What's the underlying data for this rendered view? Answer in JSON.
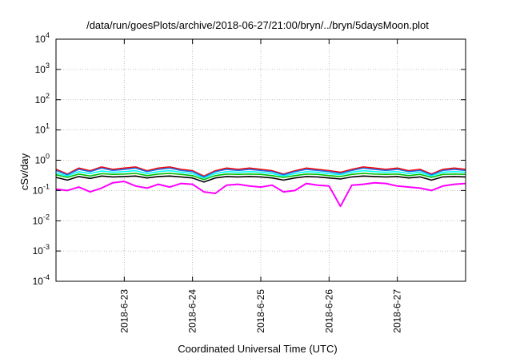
{
  "chart_data": {
    "type": "line",
    "title": "/data/run/goesPlots/archive/2018-06-27/21:00/bryn/../bryn/5daysMoon.plot",
    "xlabel": "Coordinated Universal Time (UTC)",
    "ylabel": "cSv/day",
    "yscale": "log",
    "ylim": [
      0.0001,
      10000
    ],
    "xlim": [
      "2018-06-22T00:00",
      "2018-06-28T00:00"
    ],
    "grid": true,
    "y_ticks": [
      {
        "value": 0.0001,
        "base": "10",
        "exp": "-4"
      },
      {
        "value": 0.001,
        "base": "10",
        "exp": "-3"
      },
      {
        "value": 0.01,
        "base": "10",
        "exp": "-2"
      },
      {
        "value": 0.1,
        "base": "10",
        "exp": "-1"
      },
      {
        "value": 1,
        "base": "10",
        "exp": "0"
      },
      {
        "value": 10,
        "base": "10",
        "exp": "1"
      },
      {
        "value": 100,
        "base": "10",
        "exp": "2"
      },
      {
        "value": 1000,
        "base": "10",
        "exp": "3"
      },
      {
        "value": 10000,
        "base": "10",
        "exp": "4"
      }
    ],
    "x_ticks": [
      {
        "value": "2018-06-23T00:00",
        "label": "2018-6-23"
      },
      {
        "value": "2018-06-24T00:00",
        "label": "2018-6-24"
      },
      {
        "value": "2018-06-25T00:00",
        "label": "2018-6-25"
      },
      {
        "value": "2018-06-26T00:00",
        "label": "2018-6-26"
      },
      {
        "value": "2018-06-27T00:00",
        "label": "2018-6-27"
      }
    ],
    "series": [
      {
        "color": "#ff00ff",
        "x": [
          "2018-06-22T00:00",
          "2018-06-22T04:00",
          "2018-06-22T08:00",
          "2018-06-22T12:00",
          "2018-06-22T16:00",
          "2018-06-22T20:00",
          "2018-06-23T00:00",
          "2018-06-23T04:00",
          "2018-06-23T08:00",
          "2018-06-23T12:00",
          "2018-06-23T16:00",
          "2018-06-23T20:00",
          "2018-06-24T00:00",
          "2018-06-24T04:00",
          "2018-06-24T08:00",
          "2018-06-24T12:00",
          "2018-06-24T16:00",
          "2018-06-24T20:00",
          "2018-06-25T00:00",
          "2018-06-25T04:00",
          "2018-06-25T08:00",
          "2018-06-25T12:00",
          "2018-06-25T16:00",
          "2018-06-25T20:00",
          "2018-06-26T00:00",
          "2018-06-26T04:00",
          "2018-06-26T08:00",
          "2018-06-26T12:00",
          "2018-06-26T16:00",
          "2018-06-26T20:00",
          "2018-06-27T00:00",
          "2018-06-27T04:00",
          "2018-06-27T08:00",
          "2018-06-27T12:00",
          "2018-06-27T16:00",
          "2018-06-27T20:00",
          "2018-06-28T00:00"
        ],
        "y": [
          0.11,
          0.1,
          0.13,
          0.09,
          0.12,
          0.18,
          0.2,
          0.14,
          0.12,
          0.16,
          0.13,
          0.17,
          0.16,
          0.09,
          0.08,
          0.15,
          0.16,
          0.14,
          0.13,
          0.15,
          0.09,
          0.1,
          0.17,
          0.15,
          0.14,
          0.03,
          0.15,
          0.16,
          0.18,
          0.17,
          0.14,
          0.13,
          0.12,
          0.1,
          0.14,
          0.16,
          0.17
        ]
      },
      {
        "color": "#ff0000",
        "x": [
          "2018-06-22T00:00",
          "2018-06-22T04:00",
          "2018-06-22T08:00",
          "2018-06-22T12:00",
          "2018-06-22T16:00",
          "2018-06-22T20:00",
          "2018-06-23T00:00",
          "2018-06-23T04:00",
          "2018-06-23T08:00",
          "2018-06-23T12:00",
          "2018-06-23T16:00",
          "2018-06-23T20:00",
          "2018-06-24T00:00",
          "2018-06-24T04:00",
          "2018-06-24T08:00",
          "2018-06-24T12:00",
          "2018-06-24T16:00",
          "2018-06-24T20:00",
          "2018-06-25T00:00",
          "2018-06-25T04:00",
          "2018-06-25T08:00",
          "2018-06-25T12:00",
          "2018-06-25T16:00",
          "2018-06-25T20:00",
          "2018-06-26T00:00",
          "2018-06-26T04:00",
          "2018-06-26T08:00",
          "2018-06-26T12:00",
          "2018-06-26T16:00",
          "2018-06-26T20:00",
          "2018-06-27T00:00",
          "2018-06-27T04:00",
          "2018-06-27T08:00",
          "2018-06-27T12:00",
          "2018-06-27T16:00",
          "2018-06-27T20:00",
          "2018-06-28T00:00"
        ],
        "y": [
          0.5,
          0.35,
          0.55,
          0.45,
          0.6,
          0.5,
          0.55,
          0.6,
          0.45,
          0.55,
          0.6,
          0.5,
          0.45,
          0.3,
          0.45,
          0.55,
          0.5,
          0.55,
          0.5,
          0.45,
          0.35,
          0.45,
          0.55,
          0.5,
          0.45,
          0.4,
          0.5,
          0.6,
          0.55,
          0.5,
          0.55,
          0.45,
          0.5,
          0.35,
          0.5,
          0.55,
          0.5
        ]
      },
      {
        "color": "#00ffff",
        "x": [
          "2018-06-22T00:00",
          "2018-06-22T04:00",
          "2018-06-22T08:00",
          "2018-06-22T12:00",
          "2018-06-22T16:00",
          "2018-06-22T20:00",
          "2018-06-23T00:00",
          "2018-06-23T04:00",
          "2018-06-23T08:00",
          "2018-06-23T12:00",
          "2018-06-23T16:00",
          "2018-06-23T20:00",
          "2018-06-24T00:00",
          "2018-06-24T04:00",
          "2018-06-24T08:00",
          "2018-06-24T12:00",
          "2018-06-24T16:00",
          "2018-06-24T20:00",
          "2018-06-25T00:00",
          "2018-06-25T04:00",
          "2018-06-25T08:00",
          "2018-06-25T12:00",
          "2018-06-25T16:00",
          "2018-06-25T20:00",
          "2018-06-26T00:00",
          "2018-06-26T04:00",
          "2018-06-26T08:00",
          "2018-06-26T12:00",
          "2018-06-26T16:00",
          "2018-06-26T20:00",
          "2018-06-27T00:00",
          "2018-06-27T04:00",
          "2018-06-27T08:00",
          "2018-06-27T12:00",
          "2018-06-27T16:00",
          "2018-06-27T20:00",
          "2018-06-28T00:00"
        ],
        "y": [
          0.38,
          0.3,
          0.42,
          0.36,
          0.44,
          0.4,
          0.42,
          0.45,
          0.36,
          0.42,
          0.45,
          0.4,
          0.36,
          0.26,
          0.36,
          0.42,
          0.4,
          0.42,
          0.4,
          0.36,
          0.3,
          0.36,
          0.42,
          0.4,
          0.36,
          0.33,
          0.4,
          0.45,
          0.42,
          0.4,
          0.42,
          0.36,
          0.4,
          0.3,
          0.4,
          0.42,
          0.4
        ]
      },
      {
        "color": "#00c000",
        "x": [
          "2018-06-22T00:00",
          "2018-06-22T04:00",
          "2018-06-22T08:00",
          "2018-06-22T12:00",
          "2018-06-22T16:00",
          "2018-06-22T20:00",
          "2018-06-23T00:00",
          "2018-06-23T04:00",
          "2018-06-23T08:00",
          "2018-06-23T12:00",
          "2018-06-23T16:00",
          "2018-06-23T20:00",
          "2018-06-24T00:00",
          "2018-06-24T04:00",
          "2018-06-24T08:00",
          "2018-06-24T12:00",
          "2018-06-24T16:00",
          "2018-06-24T20:00",
          "2018-06-25T00:00",
          "2018-06-25T04:00",
          "2018-06-25T08:00",
          "2018-06-25T12:00",
          "2018-06-25T16:00",
          "2018-06-25T20:00",
          "2018-06-26T00:00",
          "2018-06-26T04:00",
          "2018-06-26T08:00",
          "2018-06-26T12:00",
          "2018-06-26T16:00",
          "2018-06-26T20:00",
          "2018-06-27T00:00",
          "2018-06-27T04:00",
          "2018-06-27T08:00",
          "2018-06-27T12:00",
          "2018-06-27T16:00",
          "2018-06-27T20:00",
          "2018-06-28T00:00"
        ],
        "y": [
          0.33,
          0.27,
          0.35,
          0.3,
          0.36,
          0.34,
          0.35,
          0.37,
          0.31,
          0.35,
          0.37,
          0.34,
          0.31,
          0.23,
          0.31,
          0.35,
          0.34,
          0.35,
          0.34,
          0.31,
          0.27,
          0.31,
          0.35,
          0.34,
          0.31,
          0.29,
          0.34,
          0.37,
          0.35,
          0.34,
          0.35,
          0.31,
          0.34,
          0.27,
          0.34,
          0.35,
          0.34
        ]
      },
      {
        "color": "#000000",
        "x": [
          "2018-06-22T00:00",
          "2018-06-22T04:00",
          "2018-06-22T08:00",
          "2018-06-22T12:00",
          "2018-06-22T16:00",
          "2018-06-22T20:00",
          "2018-06-23T00:00",
          "2018-06-23T04:00",
          "2018-06-23T08:00",
          "2018-06-23T12:00",
          "2018-06-23T16:00",
          "2018-06-23T20:00",
          "2018-06-24T00:00",
          "2018-06-24T04:00",
          "2018-06-24T08:00",
          "2018-06-24T12:00",
          "2018-06-24T16:00",
          "2018-06-24T20:00",
          "2018-06-25T00:00",
          "2018-06-25T04:00",
          "2018-06-25T08:00",
          "2018-06-25T12:00",
          "2018-06-25T16:00",
          "2018-06-25T20:00",
          "2018-06-26T00:00",
          "2018-06-26T04:00",
          "2018-06-26T08:00",
          "2018-06-26T12:00",
          "2018-06-26T16:00",
          "2018-06-26T20:00",
          "2018-06-27T00:00",
          "2018-06-27T04:00",
          "2018-06-27T08:00",
          "2018-06-27T12:00",
          "2018-06-27T16:00",
          "2018-06-27T20:00",
          "2018-06-28T00:00"
        ],
        "y": [
          0.27,
          0.22,
          0.29,
          0.25,
          0.3,
          0.28,
          0.29,
          0.3,
          0.26,
          0.29,
          0.3,
          0.28,
          0.26,
          0.19,
          0.26,
          0.29,
          0.28,
          0.29,
          0.28,
          0.26,
          0.22,
          0.26,
          0.29,
          0.28,
          0.26,
          0.24,
          0.28,
          0.3,
          0.29,
          0.28,
          0.29,
          0.26,
          0.28,
          0.22,
          0.28,
          0.29,
          0.28
        ]
      },
      {
        "color": "#1e6fe0",
        "x": [
          "2018-06-22T00:00",
          "2018-06-22T04:00",
          "2018-06-22T08:00",
          "2018-06-22T12:00",
          "2018-06-22T16:00",
          "2018-06-22T20:00",
          "2018-06-23T00:00",
          "2018-06-23T04:00",
          "2018-06-23T08:00",
          "2018-06-23T12:00",
          "2018-06-23T16:00",
          "2018-06-23T20:00",
          "2018-06-24T00:00",
          "2018-06-24T04:00",
          "2018-06-24T08:00",
          "2018-06-24T12:00",
          "2018-06-24T16:00",
          "2018-06-24T20:00",
          "2018-06-25T00:00",
          "2018-06-25T04:00",
          "2018-06-25T08:00",
          "2018-06-25T12:00",
          "2018-06-25T16:00",
          "2018-06-25T20:00",
          "2018-06-26T00:00",
          "2018-06-26T04:00",
          "2018-06-26T08:00",
          "2018-06-26T12:00",
          "2018-06-26T16:00",
          "2018-06-26T20:00",
          "2018-06-27T00:00",
          "2018-06-27T04:00",
          "2018-06-27T08:00",
          "2018-06-27T12:00",
          "2018-06-27T16:00",
          "2018-06-27T20:00",
          "2018-06-28T00:00"
        ],
        "y": [
          0.46,
          0.33,
          0.5,
          0.42,
          0.55,
          0.46,
          0.5,
          0.55,
          0.42,
          0.5,
          0.55,
          0.46,
          0.42,
          0.28,
          0.42,
          0.5,
          0.46,
          0.5,
          0.46,
          0.42,
          0.33,
          0.42,
          0.5,
          0.46,
          0.42,
          0.37,
          0.46,
          0.55,
          0.5,
          0.46,
          0.5,
          0.42,
          0.46,
          0.33,
          0.46,
          0.5,
          0.46
        ]
      }
    ]
  }
}
